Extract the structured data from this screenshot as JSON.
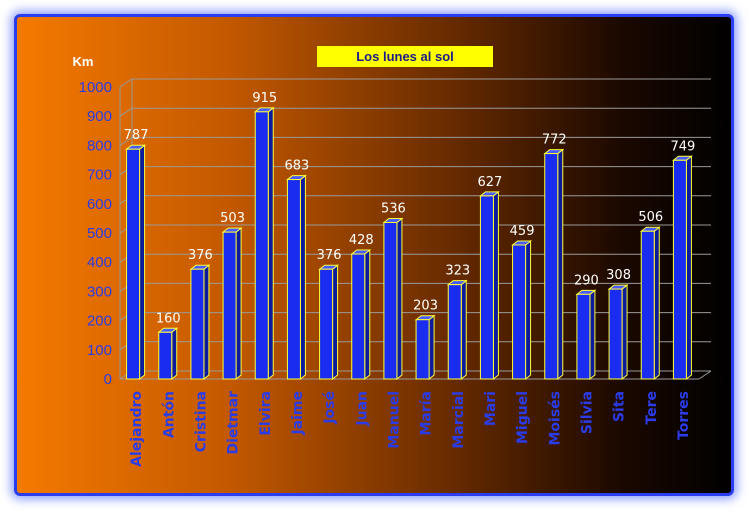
{
  "chart_data": {
    "type": "bar",
    "title": "Los lunes al sol",
    "ylabel": "Km",
    "xlabel": "",
    "ylim": [
      0,
      1000
    ],
    "yticks": [
      0,
      100,
      200,
      300,
      400,
      500,
      600,
      700,
      800,
      900,
      1000
    ],
    "categories": [
      "Alejandro",
      "Antón",
      "Cristina",
      "Dietmar",
      "Elvira",
      "Jaime",
      "José",
      "Juan",
      "Manuel",
      "María",
      "Marcial",
      "Mari",
      "Miguel",
      "Moisés",
      "Silvia",
      "Sita",
      "Tere",
      "Torres"
    ],
    "values": [
      787,
      160,
      376,
      503,
      915,
      683,
      376,
      428,
      536,
      203,
      323,
      627,
      459,
      772,
      290,
      308,
      506,
      749
    ],
    "grid": true,
    "colors": {
      "bar_front": "#1a2cf0",
      "bar_side": "#0d1a9c",
      "bar_top": "#4a5cff",
      "bar_edge": "#ffff33",
      "gridline": "#9a9a9a",
      "axis_text": "#2c3be8",
      "value_text": "#ffffff",
      "title_bg": "#ffff00",
      "title_text": "#1a1a8c"
    }
  }
}
